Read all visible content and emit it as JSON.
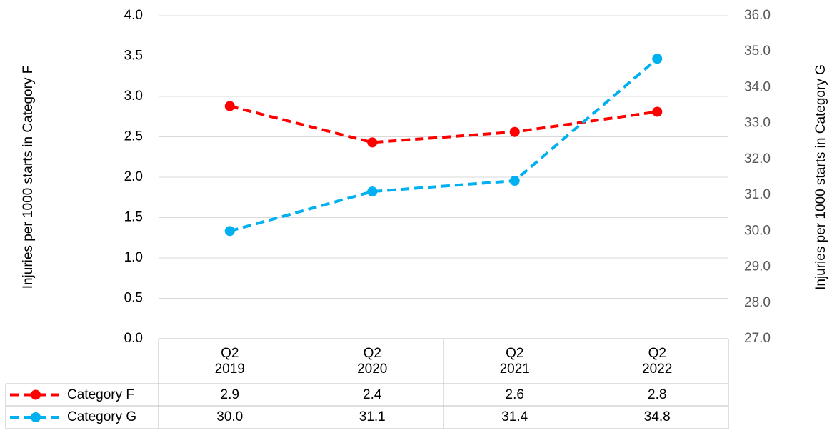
{
  "chart_data": {
    "type": "line",
    "y_label": "Injuries per 1000 starts in Category F",
    "y2_label": "Injuries per 1000 starts in Category G",
    "categories": [
      "Q2\n2019",
      "Q2\n2020",
      "Q2\n2021",
      "Q2\n2022"
    ],
    "ylim": [
      0,
      4
    ],
    "yticks": [
      {
        "value": 0,
        "label": "0.0"
      },
      {
        "value": 0.5,
        "label": "0.5"
      },
      {
        "value": 1,
        "label": "1.0"
      },
      {
        "value": 1.5,
        "label": "1.5"
      },
      {
        "value": 2,
        "label": "2.0"
      },
      {
        "value": 2.5,
        "label": "2.5"
      },
      {
        "value": 3,
        "label": "3.0"
      },
      {
        "value": 3.5,
        "label": "3.5"
      },
      {
        "value": 4,
        "label": "4.0"
      }
    ],
    "y2lim": [
      27,
      36
    ],
    "y2ticks": [
      {
        "value": 27,
        "label": "27.0"
      },
      {
        "value": 28,
        "label": "28.0"
      },
      {
        "value": 29,
        "label": "29.0"
      },
      {
        "value": 30,
        "label": "30.0"
      },
      {
        "value": 31,
        "label": "31.0"
      },
      {
        "value": 32,
        "label": "32.0"
      },
      {
        "value": 33,
        "label": "33.0"
      },
      {
        "value": 34,
        "label": "34.0"
      },
      {
        "value": 35,
        "label": "35.0"
      },
      {
        "value": 36,
        "label": "36.0"
      }
    ],
    "grid": true,
    "series": [
      {
        "name": "Category F",
        "color": "#ff0000",
        "values": [
          2.88,
          2.43,
          2.56,
          2.81
        ],
        "value_labels": [
          "2.9",
          "2.4",
          "2.6",
          "2.8"
        ]
      },
      {
        "name": "Category G",
        "color": "#00b0f0",
        "axis": "y2",
        "values": [
          30.0,
          31.1,
          31.4,
          34.8
        ],
        "value_labels": [
          "30.0",
          "31.1",
          "31.4",
          "34.8"
        ]
      }
    ]
  }
}
